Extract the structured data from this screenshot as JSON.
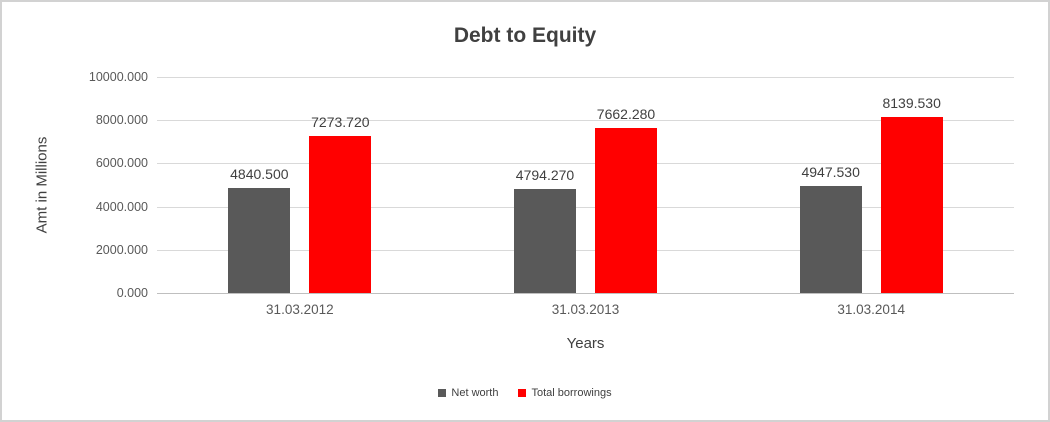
{
  "chart_data": {
    "type": "bar",
    "title": "Debt to Equity",
    "xlabel": "Years",
    "ylabel": "Amt in Millions",
    "categories": [
      "31.03.2012",
      "31.03.2013",
      "31.03.2014"
    ],
    "series": [
      {
        "name": "Net worth",
        "color": "#595959",
        "values": [
          4840.5,
          4794.27,
          4947.53
        ]
      },
      {
        "name": "Total borrowings",
        "color": "#ff0000",
        "values": [
          7273.72,
          7662.28,
          8139.53
        ]
      }
    ],
    "ylim": [
      0,
      10000
    ],
    "ytick_step": 2000,
    "tick_decimals": 3,
    "label_decimals": 3,
    "grid": true,
    "legend_position": "bottom"
  }
}
